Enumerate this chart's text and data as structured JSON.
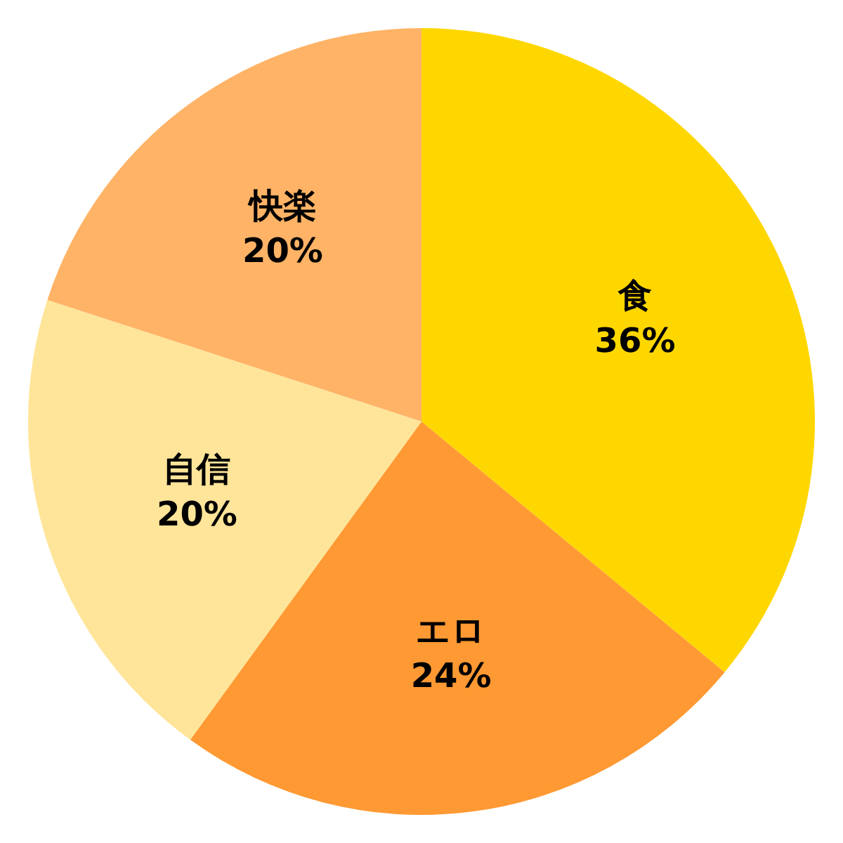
{
  "chart_data": {
    "type": "pie",
    "categories": [
      "食",
      "エロ",
      "自信",
      "快楽"
    ],
    "values": [
      36,
      24,
      20,
      20
    ],
    "colors": [
      "#ffd700",
      "#ff9933",
      "#ffe599",
      "#ffb366"
    ],
    "value_labels": [
      "36%",
      "24%",
      "20%",
      "20%"
    ],
    "legend": false
  }
}
